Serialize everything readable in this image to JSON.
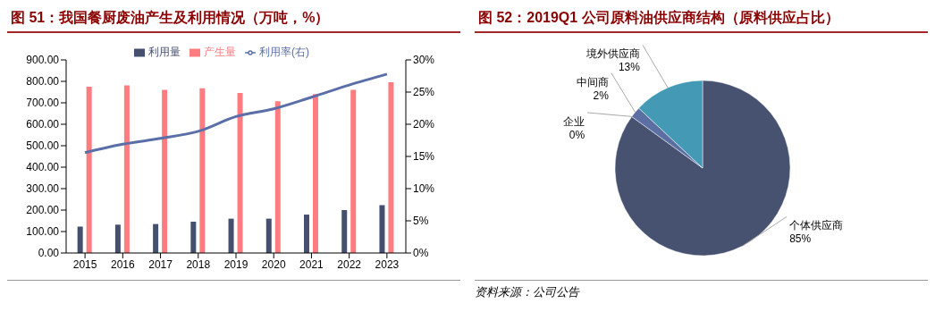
{
  "chart_data": [
    {
      "type": "bar",
      "title": "图 51：我国餐厨废油产生及利用情况（万吨，%）",
      "categories": [
        "2015",
        "2016",
        "2017",
        "2018",
        "2019",
        "2020",
        "2021",
        "2022",
        "2023"
      ],
      "series": [
        {
          "name": "利用量",
          "color": "#44506e",
          "values": [
            123,
            132,
            135,
            146,
            160,
            160,
            179,
            200,
            223
          ]
        },
        {
          "name": "产生量",
          "color": "#ff7c80",
          "values": [
            775,
            781,
            760,
            768,
            746,
            707,
            741,
            760,
            796
          ]
        },
        {
          "name": "利用率(右)",
          "type": "line",
          "axis": "y2",
          "color": "#5a6ea8",
          "values": [
            15.6,
            16.9,
            17.8,
            18.9,
            21.2,
            22.4,
            24.2,
            26.1,
            27.8
          ]
        }
      ],
      "ylim": [
        0,
        900
      ],
      "yticks": [
        {
          "value": 0,
          "label": "0.00"
        },
        {
          "value": 100,
          "label": "100.00"
        },
        {
          "value": 200,
          "label": "200.00"
        },
        {
          "value": 300,
          "label": "300.00"
        },
        {
          "value": 400,
          "label": "400.00"
        },
        {
          "value": 500,
          "label": "500.00"
        },
        {
          "value": 600,
          "label": "600.00"
        },
        {
          "value": 700,
          "label": "700.00"
        },
        {
          "value": 800,
          "label": "800.00"
        },
        {
          "value": 900,
          "label": "900.00"
        }
      ],
      "y2lim": [
        0,
        30
      ],
      "y2ticks": [
        {
          "value": 0,
          "label": "0%"
        },
        {
          "value": 5,
          "label": "5%"
        },
        {
          "value": 10,
          "label": "10%"
        },
        {
          "value": 15,
          "label": "15%"
        },
        {
          "value": 20,
          "label": "20%"
        },
        {
          "value": 25,
          "label": "25%"
        },
        {
          "value": 30,
          "label": "30%"
        }
      ],
      "grid": false,
      "legend": "top",
      "marker": "none",
      "line_style": "solid"
    },
    {
      "type": "pie",
      "title": "图 52：2019Q1 公司原料油供应商结构（原料供应占比）",
      "categories": [
        "个体供应商",
        "企业",
        "中间商",
        "境外供应商"
      ],
      "values": [
        85,
        0,
        2,
        13
      ],
      "colors": [
        "#475270",
        "#ff7c80",
        "#5b6fa3",
        "#4499b5"
      ],
      "value_labels": [
        "85%",
        "0%",
        "2%",
        "13%"
      ],
      "legend": false,
      "annotations": [
        "资料来源：公司公告"
      ]
    }
  ]
}
